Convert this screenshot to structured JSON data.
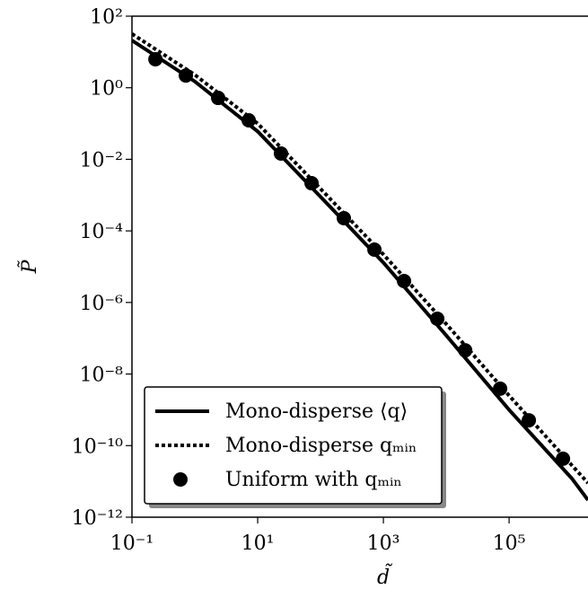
{
  "chart_data": {
    "type": "line",
    "xlabel": "d̃",
    "ylabel": "P̃",
    "xscale": "log",
    "yscale": "log",
    "xlim": [
      0.1,
      1800000
    ],
    "ylim": [
      1e-12,
      100
    ],
    "xticks": [
      {
        "value": 0.1,
        "label": "10⁻¹"
      },
      {
        "value": 10,
        "label": "10¹"
      },
      {
        "value": 1000,
        "label": "10³"
      },
      {
        "value": 100000,
        "label": "10⁵"
      }
    ],
    "yticks": [
      {
        "value": 1e-12,
        "label": "10⁻¹²"
      },
      {
        "value": 1e-10,
        "label": "10⁻¹⁰"
      },
      {
        "value": 1e-08,
        "label": "10⁻⁸"
      },
      {
        "value": 1e-06,
        "label": "10⁻⁶"
      },
      {
        "value": 0.0001,
        "label": "10⁻⁴"
      },
      {
        "value": 0.01,
        "label": "10⁻²"
      },
      {
        "value": 1,
        "label": "10⁰"
      },
      {
        "value": 100,
        "label": "10²"
      }
    ],
    "legend": "lower left",
    "series": [
      {
        "name": "Mono-disperse ⟨q⟩",
        "color": "#000000",
        "style": "solid",
        "x": [
          0.1,
          1,
          10,
          100,
          1000,
          10000,
          100000,
          1000000,
          1800000
        ],
        "values": [
          21,
          1.5,
          0.06,
          0.0009,
          1.3e-05,
          1.2e-07,
          1e-09,
          1.2e-11,
          3e-12
        ]
      },
      {
        "name": "Mono-disperse qₘᵢₙ",
        "color": "#000000",
        "style": "dotted",
        "x": [
          0.1,
          1,
          10,
          100,
          1000,
          10000,
          100000,
          1000000,
          1800000
        ],
        "values": [
          32,
          2.3,
          0.1,
          0.0015,
          2.2e-05,
          2.5e-07,
          2.5e-09,
          2.8e-11,
          9e-12
        ]
      },
      {
        "name": "Uniform with qₘᵢₙ",
        "color": "#000000",
        "style": "markers",
        "x": [
          0.236,
          0.72,
          2.35,
          7.2,
          23.5,
          72,
          235,
          720,
          2130,
          7200,
          20000,
          72000,
          206000,
          720000
        ],
        "values": [
          6.25,
          2.2,
          0.52,
          0.123,
          0.0145,
          0.00215,
          0.000226,
          3e-05,
          3.97e-06,
          3.5e-07,
          4.6e-08,
          3.9e-09,
          5.1e-10,
          4.3e-11
        ]
      }
    ]
  }
}
